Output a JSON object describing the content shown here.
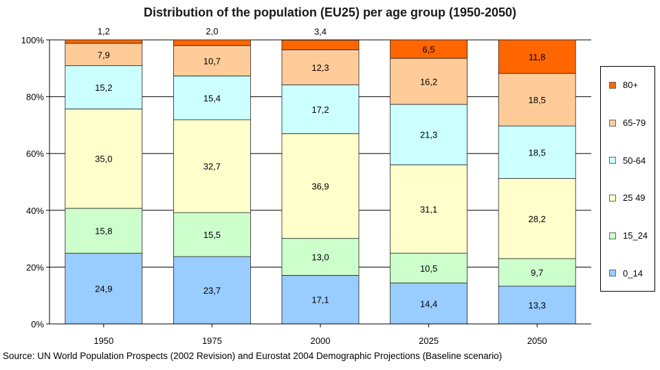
{
  "chart_data": {
    "type": "bar",
    "stacked": true,
    "title": "Distribution of the population (EU25) per age group (1950-2050)",
    "categories": [
      "1950",
      "1975",
      "2000",
      "2025",
      "2050"
    ],
    "ylim": [
      0,
      100
    ],
    "yticks": [
      "0%",
      "20%",
      "40%",
      "60%",
      "80%",
      "100%"
    ],
    "grid": true,
    "legend_position": "right",
    "series": [
      {
        "name": "0_14",
        "color": "#99ccff",
        "values": [
          24.9,
          23.7,
          17.1,
          14.4,
          13.3
        ],
        "labels": [
          "24,9",
          "23,7",
          "17,1",
          "14,4",
          "13,3"
        ]
      },
      {
        "name": "15_24",
        "color": "#ccffcc",
        "values": [
          15.8,
          15.5,
          13.0,
          10.5,
          9.7
        ],
        "labels": [
          "15,8",
          "15,5",
          "13,0",
          "10,5",
          "9,7"
        ]
      },
      {
        "name": "25 49",
        "color": "#ffffcc",
        "values": [
          35.0,
          32.7,
          36.9,
          31.1,
          28.2
        ],
        "labels": [
          "35,0",
          "32,7",
          "36,9",
          "31,1",
          "28,2"
        ]
      },
      {
        "name": "50-64",
        "color": "#ccffff",
        "values": [
          15.2,
          15.4,
          17.2,
          21.3,
          18.5
        ],
        "labels": [
          "15,2",
          "15,4",
          "17,2",
          "21,3",
          "18,5"
        ]
      },
      {
        "name": "65-79",
        "color": "#ffcc99",
        "values": [
          7.9,
          10.7,
          12.3,
          16.2,
          18.5
        ],
        "labels": [
          "7,9",
          "10,7",
          "12,3",
          "16,2",
          "18,5"
        ]
      },
      {
        "name": "80+",
        "color": "#ff6600",
        "values": [
          1.2,
          2.0,
          3.4,
          6.5,
          11.8
        ],
        "labels": [
          "1,2",
          "2,0",
          "3,4",
          "6,5",
          "11,8"
        ]
      }
    ],
    "source": "Source: UN World Population Prospects (2002 Revision) and Eurostat 2004 Demographic Projections (Baseline scenario)"
  }
}
